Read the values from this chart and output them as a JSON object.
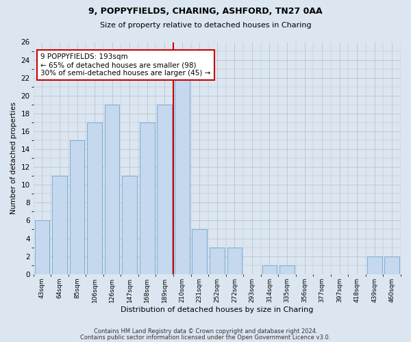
{
  "title1": "9, POPPYFIELDS, CHARING, ASHFORD, TN27 0AA",
  "title2": "Size of property relative to detached houses in Charing",
  "xlabel": "Distribution of detached houses by size in Charing",
  "ylabel": "Number of detached properties",
  "categories": [
    "43sqm",
    "64sqm",
    "85sqm",
    "106sqm",
    "126sqm",
    "147sqm",
    "168sqm",
    "189sqm",
    "210sqm",
    "231sqm",
    "252sqm",
    "272sqm",
    "293sqm",
    "314sqm",
    "335sqm",
    "356sqm",
    "377sqm",
    "397sqm",
    "418sqm",
    "439sqm",
    "460sqm"
  ],
  "values": [
    6,
    11,
    15,
    17,
    19,
    11,
    17,
    19,
    22,
    5,
    3,
    3,
    0,
    1,
    1,
    0,
    0,
    0,
    0,
    2,
    2
  ],
  "bar_color": "#c5d8ee",
  "bar_edge_color": "#7aadd4",
  "vline_color": "#cc0000",
  "annotation_text": "9 POPPYFIELDS: 193sqm\n← 65% of detached houses are smaller (98)\n30% of semi-detached houses are larger (45) →",
  "annotation_box_color": "#ffffff",
  "annotation_box_edge": "#cc0000",
  "ylim": [
    0,
    26
  ],
  "yticks": [
    0,
    2,
    4,
    6,
    8,
    10,
    12,
    14,
    16,
    18,
    20,
    22,
    24,
    26
  ],
  "bg_color": "#dce6f0",
  "plot_bg_color": "#dce6f0",
  "grid_color": "#b0becc",
  "footer1": "Contains HM Land Registry data © Crown copyright and database right 2024.",
  "footer2": "Contains public sector information licensed under the Open Government Licence v3.0."
}
